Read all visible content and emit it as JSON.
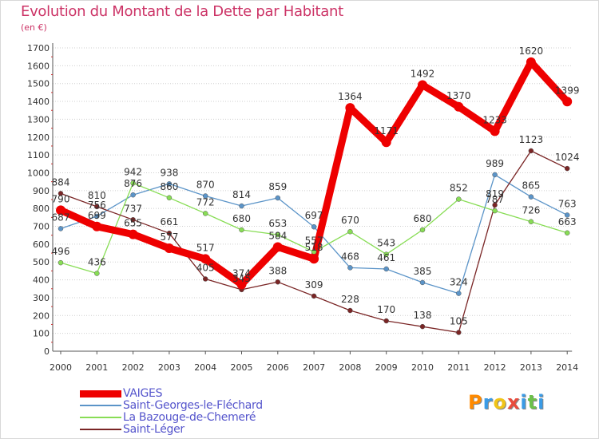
{
  "header": {
    "title": "Evolution du Montant de la Dette par Habitant",
    "unit": "(en €)"
  },
  "logo": {
    "text": "Proxiti",
    "colors": [
      "#ff8a00",
      "#3a9be6",
      "#f0c419",
      "#e84c3d",
      "#3a9be6",
      "#6cc04a",
      "#3a9be6"
    ]
  },
  "chart_data": {
    "type": "line",
    "title": "Evolution du Montant de la Dette par Habitant",
    "ylabel": "(en €)",
    "xlabel": "",
    "ylim": [
      0,
      1700
    ],
    "ytick_step": 100,
    "grid": "horizontal dotted",
    "legend_position": "bottom-left",
    "x": [
      "2000",
      "2001",
      "2002",
      "2003",
      "2004",
      "2005",
      "2006",
      "2007",
      "2008",
      "2009",
      "2010",
      "2011",
      "2012",
      "2013",
      "2014"
    ],
    "series": [
      {
        "name": "VAIGES",
        "color": "#ee0000",
        "line_style": "thick",
        "values": [
          790,
          699,
          655,
          577,
          517,
          374,
          584,
          518,
          1364,
          1171,
          1492,
          1370,
          1233,
          1620,
          1399
        ],
        "labels": [
          "790",
          "699",
          "655",
          "577",
          "517",
          "374",
          "584",
          "518",
          "1364",
          "1171",
          "1492",
          "1370",
          "1233",
          "1620",
          "1399"
        ]
      },
      {
        "name": "Saint-Georges-le-Fléchard",
        "color": "#5b94c8",
        "line_style": "thin",
        "values": [
          687,
          756,
          876,
          938,
          870,
          814,
          859,
          697,
          468,
          461,
          385,
          324,
          989,
          865,
          763
        ],
        "labels": [
          "687",
          "756",
          "876",
          "938",
          "870",
          "814",
          "859",
          "697",
          "468",
          "461",
          "385",
          "324",
          "989",
          "865",
          "763"
        ]
      },
      {
        "name": "La Bazouge-de-Chemeré",
        "color": "#88dd55",
        "line_style": "thin",
        "values": [
          496,
          436,
          942,
          860,
          772,
          680,
          653,
          557,
          670,
          543,
          680,
          852,
          787,
          726,
          663
        ],
        "labels": [
          "496",
          "436",
          "942",
          "860",
          "772",
          "680",
          "653",
          "557",
          "670",
          "543",
          "680",
          "852",
          "787",
          "726",
          "663"
        ]
      },
      {
        "name": "Saint-Léger",
        "color": "#7a2525",
        "line_style": "thin",
        "values": [
          884,
          810,
          737,
          661,
          405,
          345,
          388,
          309,
          228,
          170,
          138,
          105,
          819,
          1123,
          1024
        ],
        "labels": [
          "884",
          "810",
          "737",
          "661",
          "405",
          "345",
          "388",
          "309",
          "228",
          "170",
          "138",
          "105",
          "819",
          "1123",
          "1024"
        ]
      }
    ]
  }
}
